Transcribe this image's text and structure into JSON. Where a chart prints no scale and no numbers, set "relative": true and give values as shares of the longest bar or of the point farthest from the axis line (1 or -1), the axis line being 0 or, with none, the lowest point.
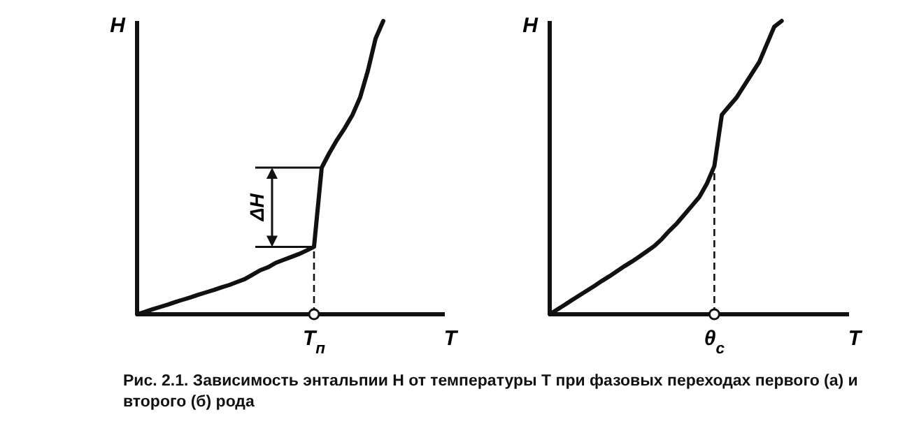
{
  "chart_data": [
    {
      "type": "line",
      "relative": true,
      "xlabel": "T",
      "ylabel": "H",
      "color": "#111111",
      "line_style": "solid",
      "marker": "none",
      "categories": [
        null,
        null,
        null,
        null,
        null,
        null,
        null,
        null,
        null,
        null,
        null,
        null,
        null,
        null,
        null,
        null,
        null,
        null,
        null,
        null,
        null,
        null,
        null,
        null,
        null,
        null,
        null,
        null,
        null,
        null,
        null,
        null,
        null,
        null,
        null,
        null,
        null,
        null,
        null,
        null,
        null
      ],
      "values": [
        0,
        0.008,
        0.017,
        0.025,
        0.033,
        0.042,
        0.05,
        0.058,
        0.067,
        0.075,
        0.083,
        0.092,
        0.1,
        0.11,
        0.12,
        0.135,
        0.15,
        0.16,
        0.175,
        0.185,
        0.195,
        0.205,
        0.217,
        0.23,
        0.5,
        0.55,
        0.595,
        0.635,
        0.68,
        0.74,
        0.83,
        0.94,
        1,
        null,
        null,
        null,
        null,
        null,
        null,
        null,
        null
      ],
      "annotations": [
        "ΔH",
        {
          "text": "T$_{п}$",
          "y": 0
        }
      ]
    },
    {
      "type": "line",
      "relative": true,
      "xlabel": "T",
      "ylabel": "H",
      "color": "#111111",
      "line_style": "solid",
      "marker": "none",
      "categories": [
        null,
        null,
        null,
        null,
        null,
        null,
        null,
        null,
        null,
        null,
        null,
        null,
        null,
        null,
        null,
        null,
        null,
        null,
        null,
        null,
        null,
        null,
        null,
        null,
        null,
        null,
        null,
        null,
        null,
        null,
        null,
        null,
        null,
        null,
        null,
        null,
        null,
        null,
        null,
        null,
        null
      ],
      "values": [
        0,
        0.016,
        0.032,
        0.049,
        0.065,
        0.081,
        0.097,
        0.114,
        0.13,
        0.147,
        0.164,
        0.18,
        0.197,
        0.215,
        0.233,
        0.257,
        0.285,
        0.31,
        0.34,
        0.37,
        0.4,
        0.445,
        0.505,
        0.68,
        0.71,
        0.74,
        0.78,
        0.82,
        0.86,
        0.92,
        0.98,
        1,
        null,
        null,
        null,
        null,
        null,
        null,
        null,
        null,
        null
      ],
      "annotations": [
        {
          "text": "θ$_{c}$",
          "y": 0
        },
        "Рис. 2.1. Зависимость энтальпии H от температуры T при фазовых переходах первого (а) и второго (б) рода"
      ]
    }
  ]
}
